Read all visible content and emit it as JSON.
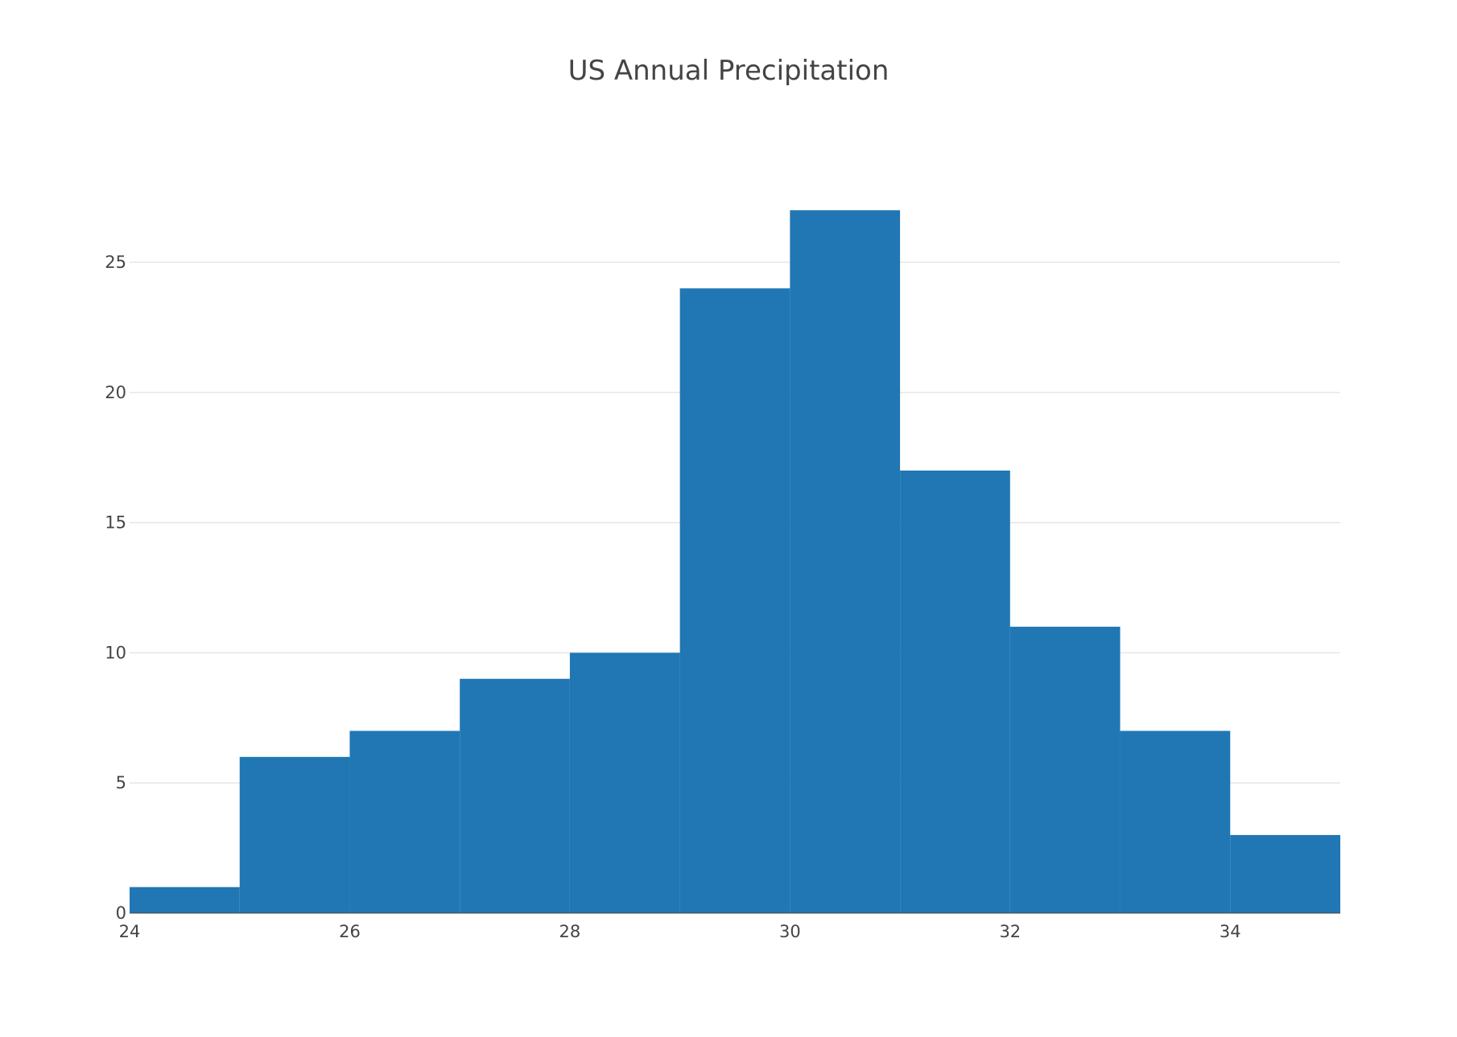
{
  "chart_data": {
    "type": "bar",
    "subtype": "histogram",
    "title": "US Annual Precipitation",
    "xlabel": "",
    "ylabel": "",
    "bin_edges": [
      24,
      25,
      26,
      27,
      28,
      29,
      30,
      31,
      32,
      33,
      34,
      35
    ],
    "counts": [
      1,
      6,
      7,
      9,
      10,
      24,
      27,
      17,
      11,
      7,
      3
    ],
    "xlim": [
      24,
      35
    ],
    "ylim": [
      0,
      28.4
    ],
    "x_ticks": [
      24,
      26,
      28,
      30,
      32,
      34
    ],
    "y_ticks": [
      0,
      5,
      10,
      15,
      20,
      25
    ],
    "grid": "horizontal",
    "legend": "none",
    "colors": {
      "bar": "#2077b4",
      "grid": "#e6e6e6",
      "axis": "#444444",
      "background": "#ffffff"
    }
  }
}
